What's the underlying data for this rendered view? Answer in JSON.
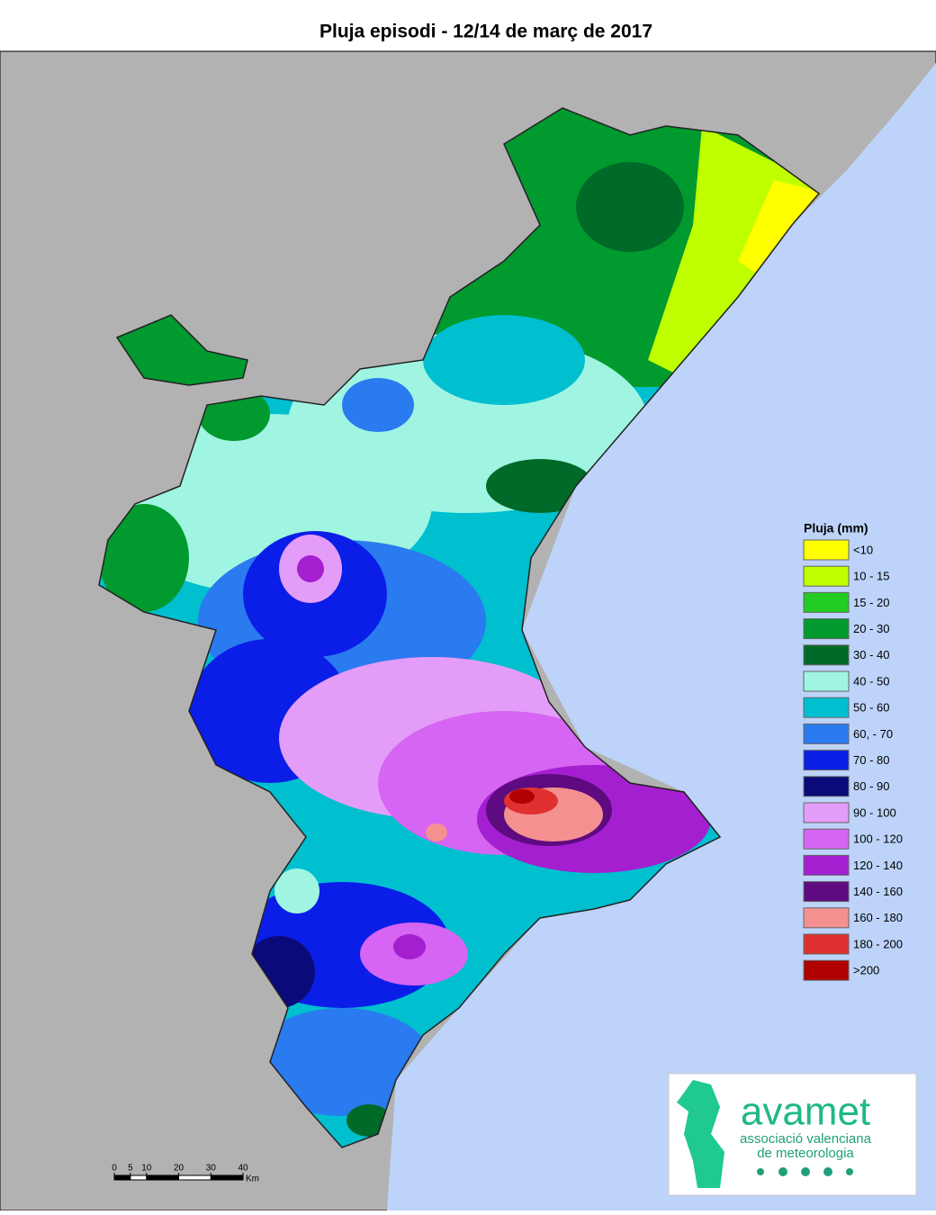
{
  "title": "Pluja episodi - 12/14 de març de 2017",
  "legend": {
    "title": "Pluja (mm)",
    "items": [
      {
        "label": "<10",
        "color": "#ffff00"
      },
      {
        "label": "10 - 15",
        "color": "#bfff00"
      },
      {
        "label": "15 - 20",
        "color": "#22cc22"
      },
      {
        "label": "20 - 30",
        "color": "#009a2e"
      },
      {
        "label": "30 - 40",
        "color": "#006a28"
      },
      {
        "label": "40 - 50",
        "color": "#9ff5e1"
      },
      {
        "label": "50 - 60",
        "color": "#00bfcf"
      },
      {
        "label": "60, - 70",
        "color": "#2a7af0"
      },
      {
        "label": "70 - 80",
        "color": "#0a1ee8"
      },
      {
        "label": "80 - 90",
        "color": "#0a0a7a"
      },
      {
        "label": "90 - 100",
        "color": "#e39cf7"
      },
      {
        "label": "100 - 120",
        "color": "#d565f2"
      },
      {
        "label": "120 - 140",
        "color": "#a41fd0"
      },
      {
        "label": "140 - 160",
        "color": "#5e0a80"
      },
      {
        "label": "160 - 180",
        "color": "#f59090"
      },
      {
        "label": "180 - 200",
        "color": "#e03030"
      },
      {
        "label": ">200",
        "color": "#b00000"
      }
    ]
  },
  "scale": {
    "ticks": [
      0,
      5,
      10,
      20,
      30,
      40
    ],
    "unit": "Km"
  },
  "logo": {
    "name": "avamet",
    "line1": "associació valenciana",
    "line2": "de meteorologia"
  }
}
